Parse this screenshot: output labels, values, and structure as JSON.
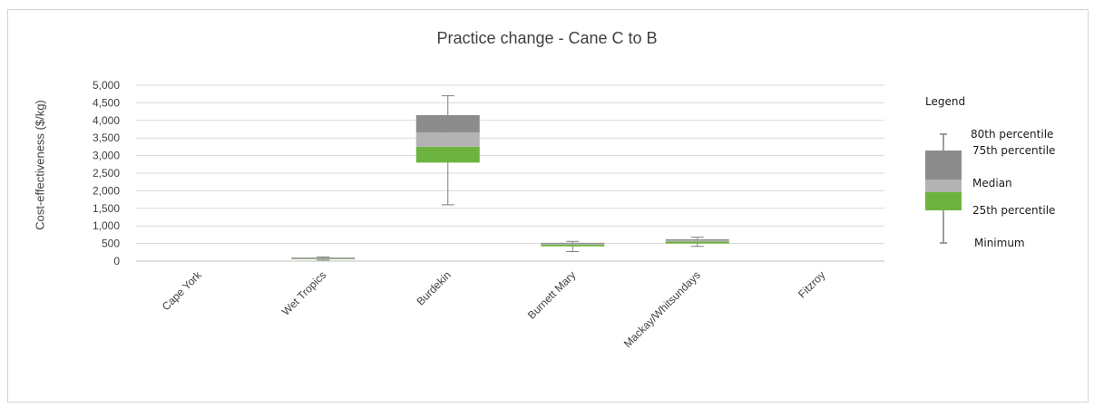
{
  "chart_data": {
    "type": "box",
    "title": "Practice change - Cane C to B",
    "xlabel": "",
    "ylabel": "Cost-effectiveness ($/kg)",
    "ylim": [
      0,
      5000
    ],
    "yticks": [
      0,
      500,
      1000,
      1500,
      2000,
      2500,
      3000,
      3500,
      4000,
      4500,
      5000
    ],
    "ytick_labels": [
      "0",
      "500",
      "1,000",
      "1,500",
      "2,000",
      "2,500",
      "3,000",
      "3,500",
      "4,000",
      "4,500",
      "5,000"
    ],
    "grid": true,
    "categories": [
      "Cape York",
      "Wet Tropics",
      "Burdekin",
      "Burnett Mary",
      "Mackay/Whitsundays",
      "Fitzroy"
    ],
    "series": [
      {
        "min": [
          null,
          30,
          1600,
          270,
          420,
          null
        ],
        "p25": [
          null,
          60,
          2800,
          420,
          500,
          null
        ],
        "median": [
          null,
          80,
          3250,
          470,
          560,
          null
        ],
        "p75": [
          null,
          100,
          4150,
          520,
          620,
          null
        ],
        "p80": [
          null,
          120,
          4700,
          560,
          680,
          null
        ]
      }
    ],
    "colors": {
      "upper_box": "#8c8c8c",
      "mid_box": "#b3b3b3",
      "lower_box": "#6db33f",
      "whisker": "#7f7f7f",
      "grid": "#d9d9d9",
      "axis": "#bfbfbf"
    },
    "legend": {
      "title": "Legend",
      "position": "right",
      "items": [
        "80th percentile",
        "75th percentile",
        "Median",
        "25th percentile",
        "Minimum"
      ]
    }
  }
}
